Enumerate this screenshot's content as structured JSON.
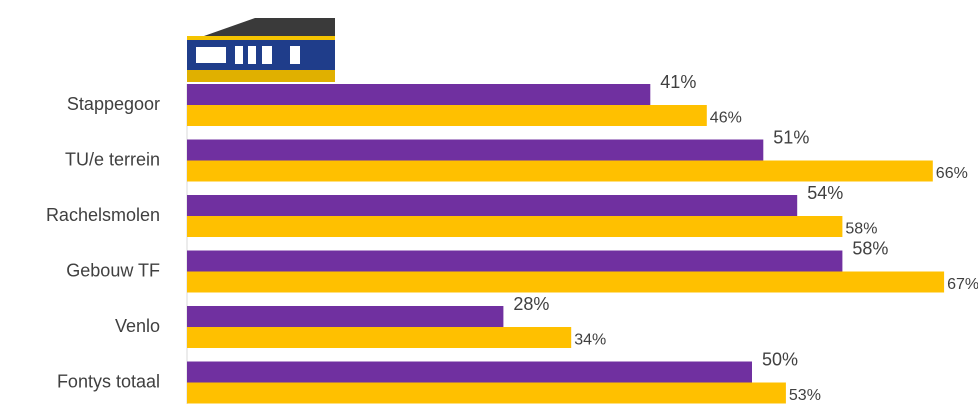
{
  "chart_data": {
    "type": "hbar",
    "categories": [
      "Stappegoor",
      "TU/e terrein",
      "Rachelsmolen",
      "Gebouw TF",
      "Venlo",
      "Fontys totaal"
    ],
    "series": [
      {
        "color": "#7030a0",
        "values": [
          41,
          51,
          54,
          58,
          28,
          50
        ],
        "value_labels": [
          "41%",
          "51%",
          "54%",
          "58%",
          "28%",
          "50%"
        ]
      },
      {
        "color": "#ffc000",
        "values": [
          46,
          66,
          58,
          67,
          34,
          53
        ],
        "value_labels": [
          "46%",
          "66%",
          "58%",
          "67%",
          "34%",
          "53%"
        ]
      }
    ],
    "xlim": [
      0,
      70
    ]
  }
}
